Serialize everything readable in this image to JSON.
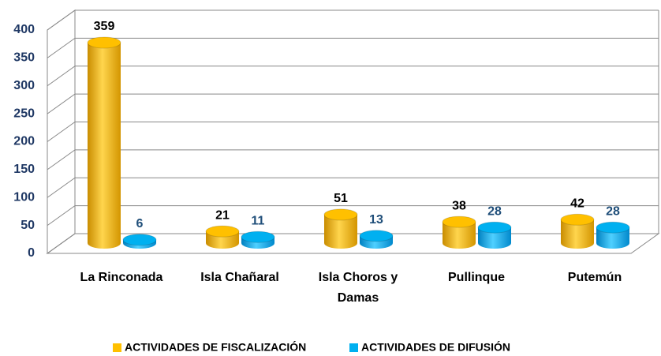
{
  "chart_data": {
    "type": "bar",
    "categories": [
      "La Rinconada",
      "Isla Chañaral",
      "Isla Choros y Damas",
      "Pullinque",
      "Putemún"
    ],
    "series": [
      {
        "name": "ACTIVIDADES DE FISCALIZACIÓN",
        "color": "#FFC000",
        "values": [
          359,
          21,
          51,
          38,
          42
        ]
      },
      {
        "name": "ACTIVIDADES DE DIFUSIÓN",
        "color": "#00B0F0",
        "values": [
          6,
          11,
          13,
          28,
          28
        ]
      }
    ],
    "ylim": [
      0,
      400
    ],
    "yticks": [
      0,
      50,
      100,
      150,
      200,
      250,
      300,
      350,
      400
    ],
    "grid": true,
    "legend": "bottom"
  }
}
